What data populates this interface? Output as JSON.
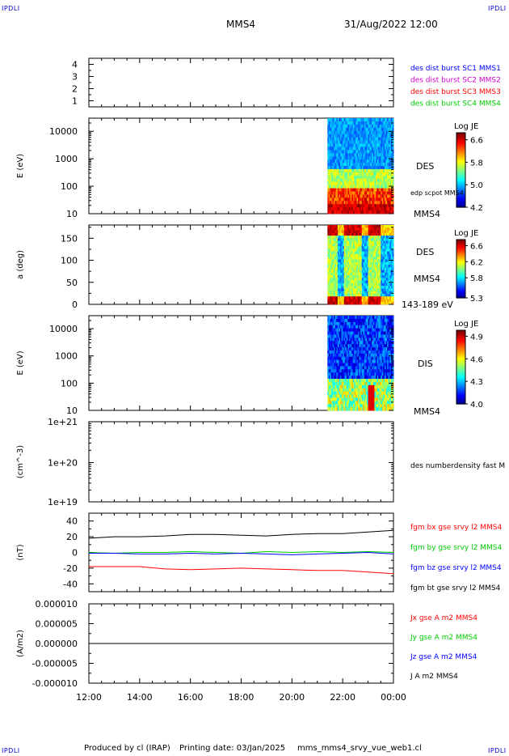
{
  "corner_logo": "IPDLI",
  "header": {
    "spacecraft": "MMS4",
    "datetime": "31/Aug/2022 12:00"
  },
  "footer": {
    "produced_by": "Produced by cl (IRAP)",
    "printing_date": "Printing date: 03/Jan/2025",
    "filename": "mms_mms4_srvy_vue_web1.cl"
  },
  "time_axis": {
    "ticks": [
      "12:00",
      "14:00",
      "16:00",
      "18:00",
      "20:00",
      "22:00",
      "00:00"
    ],
    "tick_hours": [
      12,
      14,
      16,
      18,
      20,
      22,
      24
    ],
    "range_hours": [
      12,
      24
    ]
  },
  "chart_data": [
    {
      "type": "table",
      "panel": "burst availability",
      "ylim": [
        0.5,
        4.5
      ],
      "yticks": [
        "1",
        "2",
        "3",
        "4"
      ],
      "legend": [
        {
          "label": "des dist burst SC1 MMS1",
          "color": "#0000ff"
        },
        {
          "label": "des dist burst SC2 MMS2",
          "color": "#cc00cc"
        },
        {
          "label": "des dist burst SC3 MMS3",
          "color": "#ff0000"
        },
        {
          "label": "des dist burst SC4 MMS4",
          "color": "#00cc00"
        }
      ]
    },
    {
      "type": "heatmap",
      "panel": "DES energy spectrogram",
      "ylabel": "E (eV)",
      "yscale": "log",
      "ylim": [
        10,
        30000
      ],
      "yticks": [
        "10",
        "100",
        "1000",
        "10000"
      ],
      "data_start_hour": 21.4,
      "data_end_hour": 24,
      "colorbar": {
        "title": "Log JE",
        "ticks": [
          "4.2",
          "5.0",
          "5.8",
          "6.6"
        ],
        "range": [
          4.2,
          6.85
        ]
      },
      "labels": {
        "species": "DES",
        "line": "edp scpot MMS4",
        "spacecraft": "MMS4"
      }
    },
    {
      "type": "heatmap",
      "panel": "DES pitch angle",
      "ylabel": "a (deg)",
      "ylim": [
        0,
        180
      ],
      "yticks": [
        "0",
        "50",
        "100",
        "150"
      ],
      "data_start_hour": 21.4,
      "data_end_hour": 24,
      "colorbar": {
        "title": "Log JE",
        "ticks": [
          "5.3",
          "5.8",
          "6.2",
          "6.6"
        ],
        "range": [
          5.3,
          6.75
        ]
      },
      "labels": {
        "species": "DES",
        "spacecraft": "MMS4",
        "energy": "143-189 eV"
      }
    },
    {
      "type": "heatmap",
      "panel": "DIS energy spectrogram",
      "ylabel": "E (eV)",
      "yscale": "log",
      "ylim": [
        10,
        30000
      ],
      "yticks": [
        "10",
        "100",
        "1000",
        "10000"
      ],
      "data_start_hour": 21.4,
      "data_end_hour": 24,
      "colorbar": {
        "title": "Log JE",
        "ticks": [
          "4.0",
          "4.3",
          "4.6",
          "4.9"
        ],
        "range": [
          4.0,
          4.98
        ]
      },
      "labels": {
        "species": "DIS",
        "spacecraft": "MMS4"
      }
    },
    {
      "type": "line",
      "panel": "number density",
      "ylabel": "(cm^-3)",
      "yscale": "log",
      "yticks": [
        "1e+19",
        "1e+20",
        "1e+21"
      ],
      "series": [
        {
          "name": "des numberdensity fast M",
          "values": []
        }
      ]
    },
    {
      "type": "line",
      "panel": "magnetic field",
      "ylabel": "(nT)",
      "ylim": [
        -50,
        50
      ],
      "yticks": [
        "-40",
        "-20",
        "0",
        "20",
        "40"
      ],
      "x": [
        12,
        13,
        14,
        15,
        16,
        17,
        18,
        19,
        20,
        21,
        22,
        23,
        24
      ],
      "series": [
        {
          "name": "fgm bx gse srvy l2 MMS4",
          "color": "#ff0000",
          "values": [
            -18,
            -18,
            -18,
            -21,
            -22,
            -21,
            -20,
            -21,
            -22,
            -23,
            -23,
            -25,
            -27
          ]
        },
        {
          "name": "fgm by gse srvy l2 MMS4",
          "color": "#00cc00",
          "values": [
            0,
            -1,
            0,
            0,
            1,
            0,
            -1,
            1,
            0,
            1,
            0,
            1,
            0
          ]
        },
        {
          "name": "fgm bz gse srvy l2 MMS4",
          "color": "#0000ff",
          "values": [
            -1,
            -1,
            -2,
            -2,
            -1,
            -2,
            -1,
            -2,
            -3,
            -2,
            -1,
            0,
            -2
          ]
        },
        {
          "name": "fgm bt gse srvy l2 MMS4",
          "color": "#000000",
          "values": [
            18,
            20,
            20,
            21,
            23,
            23,
            22,
            21,
            23,
            24,
            24,
            26,
            28
          ]
        }
      ]
    },
    {
      "type": "line",
      "panel": "current density",
      "ylabel": "(A/m2)",
      "ylim": [
        -1e-05,
        1e-05
      ],
      "yticks": [
        "-0.000010",
        "-0.000005",
        "0.000000",
        "0.000005",
        "0.000010"
      ],
      "x": [
        12,
        24
      ],
      "series": [
        {
          "name": "Jx gse A m2 MMS4",
          "color": "#ff0000",
          "values": [
            0,
            0
          ]
        },
        {
          "name": "Jy gse A m2 MMS4",
          "color": "#00cc00",
          "values": [
            0,
            0
          ]
        },
        {
          "name": "Jz gse A m2 MMS4",
          "color": "#0000ff",
          "values": [
            0,
            0
          ]
        },
        {
          "name": "J A m2 MMS4",
          "color": "#000000",
          "values": [
            0,
            0
          ]
        }
      ]
    }
  ]
}
